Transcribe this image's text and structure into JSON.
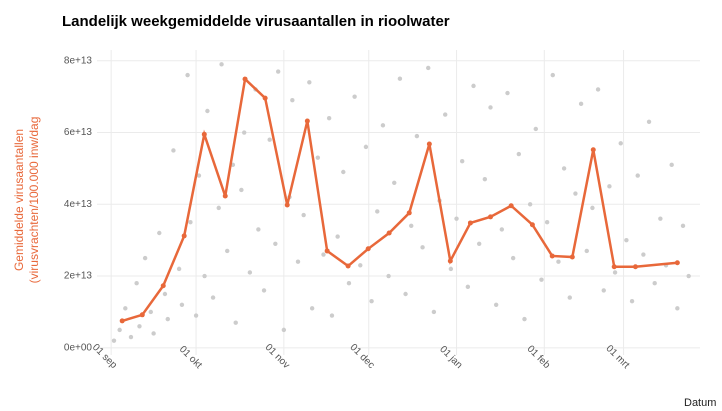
{
  "chart_data": {
    "type": "line",
    "title": "Landelijk weekgemiddelde virusaantallen in rioolwater",
    "y_label_lines": [
      "Gemiddelde virusaantallen",
      "(virusvrachten/100.000 inw/dag"
    ],
    "x_label": "Datum",
    "xlim": [
      -5,
      208
    ],
    "ylim": [
      -2000000000000.0,
      83000000000000.0
    ],
    "xticks": [
      {
        "value": 0,
        "label": "01 sep"
      },
      {
        "value": 30,
        "label": "01 okt"
      },
      {
        "value": 61,
        "label": "01 nov"
      },
      {
        "value": 91,
        "label": "01 dec"
      },
      {
        "value": 122,
        "label": "01 jan"
      },
      {
        "value": 153,
        "label": "01 feb"
      },
      {
        "value": 181,
        "label": "01 mrt"
      }
    ],
    "yticks": [
      {
        "value": 0,
        "label": "0e+00"
      },
      {
        "value": 20000000000000.0,
        "label": "2e+13"
      },
      {
        "value": 40000000000000.0,
        "label": "4e+13"
      },
      {
        "value": 60000000000000.0,
        "label": "6e+13"
      },
      {
        "value": 80000000000000.0,
        "label": "8e+13"
      }
    ],
    "grid": true,
    "points": {
      "color": "#cccccc",
      "x": [
        1,
        3,
        5,
        7,
        9,
        10,
        12,
        14,
        15,
        17,
        19,
        20,
        22,
        24,
        25,
        27,
        28,
        30,
        31,
        33,
        34,
        36,
        38,
        39,
        41,
        43,
        44,
        46,
        47,
        49,
        51,
        52,
        54,
        56,
        58,
        59,
        61,
        63,
        64,
        66,
        68,
        70,
        71,
        73,
        75,
        77,
        78,
        80,
        82,
        84,
        86,
        88,
        90,
        92,
        94,
        96,
        98,
        100,
        102,
        104,
        106,
        108,
        110,
        112,
        114,
        116,
        118,
        120,
        122,
        124,
        126,
        128,
        130,
        132,
        134,
        136,
        138,
        140,
        142,
        144,
        146,
        148,
        150,
        152,
        154,
        156,
        158,
        160,
        162,
        164,
        166,
        168,
        170,
        172,
        174,
        176,
        178,
        180,
        182,
        184,
        186,
        188,
        190,
        192,
        194,
        196,
        198,
        200,
        202,
        204
      ],
      "values": [
        2000000000000.0,
        5000000000000.0,
        11000000000000.0,
        3000000000000.0,
        18000000000000.0,
        6000000000000.0,
        25000000000000.0,
        10000000000000.0,
        4000000000000.0,
        32000000000000.0,
        15000000000000.0,
        8000000000000.0,
        55000000000000.0,
        22000000000000.0,
        12000000000000.0,
        76000000000000.0,
        35000000000000.0,
        9000000000000.0,
        48000000000000.0,
        20000000000000.0,
        66000000000000.0,
        14000000000000.0,
        39000000000000.0,
        79000000000000.0,
        27000000000000.0,
        51000000000000.0,
        7000000000000.0,
        44000000000000.0,
        60000000000000.0,
        21000000000000.0,
        72000000000000.0,
        33000000000000.0,
        16000000000000.0,
        58000000000000.0,
        29000000000000.0,
        77000000000000.0,
        5000000000000.0,
        42000000000000.0,
        69000000000000.0,
        24000000000000.0,
        37000000000000.0,
        74000000000000.0,
        11000000000000.0,
        53000000000000.0,
        26000000000000.0,
        64000000000000.0,
        9000000000000.0,
        31000000000000.0,
        49000000000000.0,
        18000000000000.0,
        70000000000000.0,
        23000000000000.0,
        56000000000000.0,
        13000000000000.0,
        38000000000000.0,
        62000000000000.0,
        20000000000000.0,
        46000000000000.0,
        75000000000000.0,
        15000000000000.0,
        34000000000000.0,
        59000000000000.0,
        28000000000000.0,
        78000000000000.0,
        10000000000000.0,
        41000000000000.0,
        65000000000000.0,
        22000000000000.0,
        36000000000000.0,
        52000000000000.0,
        17000000000000.0,
        73000000000000.0,
        29000000000000.0,
        47000000000000.0,
        67000000000000.0,
        12000000000000.0,
        33000000000000.0,
        71000000000000.0,
        25000000000000.0,
        54000000000000.0,
        8000000000000.0,
        40000000000000.0,
        61000000000000.0,
        19000000000000.0,
        35000000000000.0,
        76000000000000.0,
        24000000000000.0,
        50000000000000.0,
        14000000000000.0,
        43000000000000.0,
        68000000000000.0,
        27000000000000.0,
        39000000000000.0,
        72000000000000.0,
        16000000000000.0,
        45000000000000.0,
        21000000000000.0,
        57000000000000.0,
        30000000000000.0,
        13000000000000.0,
        48000000000000.0,
        26000000000000.0,
        63000000000000.0,
        18000000000000.0,
        36000000000000.0,
        23000000000000.0,
        51000000000000.0,
        11000000000000.0,
        34000000000000.0,
        20000000000000.0
      ]
    },
    "line": {
      "color": "#e8683a",
      "x": [
        3.9,
        11,
        18.4,
        25.8,
        32.9,
        40.3,
        47.3,
        54.4,
        62.2,
        69.3,
        76.3,
        83.7,
        90.8,
        98.2,
        105.3,
        112.4,
        119.8,
        126.9,
        134,
        141.3,
        148.8,
        155.8,
        162.9,
        170.3,
        177.7,
        185.2,
        200
      ],
      "values": [
        7500000000000.0,
        9200000000000.0,
        17300000000000.0,
        31200000000000.0,
        59500000000000.0,
        42300000000000.0,
        74900000000000.0,
        69600000000000.0,
        39800000000000.0,
        63200000000000.0,
        27000000000000.0,
        22800000000000.0,
        27600000000000.0,
        32000000000000.0,
        37600000000000.0,
        56800000000000.0,
        24200000000000.0,
        34800000000000.0,
        36500000000000.0,
        39600000000000.0,
        34300000000000.0,
        25600000000000.0,
        25300000000000.0,
        55200000000000.0,
        22600000000000.0,
        22600000000000.0,
        23700000000000.0
      ]
    }
  }
}
